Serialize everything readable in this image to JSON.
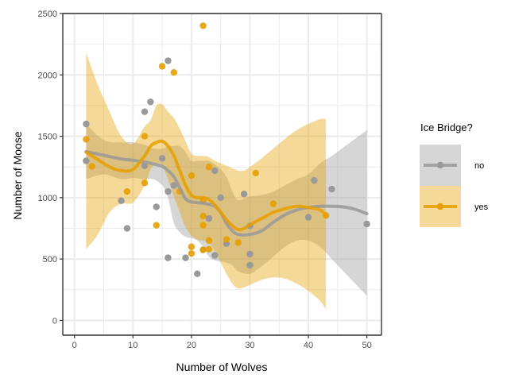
{
  "chart_data": {
    "type": "scatter",
    "xlabel": "Number of Wolves",
    "ylabel": "Number of Moose",
    "xlim": [
      -2,
      52.5
    ],
    "ylim": [
      -120,
      2500
    ],
    "x_ticks": [
      0,
      10,
      20,
      30,
      40,
      50
    ],
    "y_ticks": [
      0,
      500,
      1000,
      1500,
      2000,
      2500
    ],
    "grid": true,
    "legend": {
      "title": "Ice Bridge?",
      "position": "right",
      "entries": [
        "no",
        "yes"
      ]
    },
    "colors": {
      "no": "#999999",
      "yes": "#E69F00",
      "axis": "#333333",
      "grid": "#ebebeb"
    },
    "series": [
      {
        "name": "no",
        "points": [
          [
            2,
            1600
          ],
          [
            2,
            1300
          ],
          [
            8,
            975
          ],
          [
            9,
            750
          ],
          [
            12,
            1700
          ],
          [
            12,
            1260
          ],
          [
            13,
            1780
          ],
          [
            14,
            925
          ],
          [
            15,
            1320
          ],
          [
            16,
            2115
          ],
          [
            16,
            510
          ],
          [
            16,
            1050
          ],
          [
            17,
            1100
          ],
          [
            19,
            510
          ],
          [
            21,
            380
          ],
          [
            22,
            575
          ],
          [
            23,
            830
          ],
          [
            24,
            1220
          ],
          [
            24,
            530
          ],
          [
            25,
            1000
          ],
          [
            26,
            625
          ],
          [
            29,
            1030
          ],
          [
            30,
            770
          ],
          [
            30,
            540
          ],
          [
            30,
            450
          ],
          [
            40,
            840
          ],
          [
            41,
            1140
          ],
          [
            44,
            1070
          ],
          [
            50,
            785
          ]
        ],
        "smooth_x": [
          2,
          5,
          8,
          10,
          12,
          13.5,
          15,
          16,
          17,
          18,
          19,
          20,
          21,
          22,
          23,
          24,
          25,
          26,
          27,
          28,
          30,
          32,
          34,
          36,
          38,
          40,
          42,
          44,
          46,
          48,
          50
        ],
        "smooth_y": [
          1375,
          1345,
          1315,
          1305,
          1290,
          1275,
          1255,
          1220,
          1170,
          1080,
          990,
          965,
          960,
          955,
          945,
          930,
          880,
          790,
          730,
          700,
          700,
          730,
          800,
          860,
          900,
          920,
          930,
          930,
          925,
          905,
          870
        ],
        "ci_low": [
          1150,
          1190,
          1150,
          1160,
          1150,
          1150,
          1100,
          1000,
          790,
          720,
          680,
          670,
          650,
          600,
          520,
          490,
          480,
          470,
          450,
          400,
          380,
          440,
          520,
          600,
          650,
          650,
          600,
          500,
          400,
          300,
          200
        ],
        "ci_high": [
          1600,
          1470,
          1450,
          1450,
          1430,
          1400,
          1400,
          1420,
          1420,
          1420,
          1370,
          1300,
          1300,
          1300,
          1300,
          1270,
          1230,
          1170,
          1050,
          980,
          1010,
          1020,
          1050,
          1100,
          1150,
          1190,
          1280,
          1340,
          1410,
          1480,
          1550
        ]
      },
      {
        "name": "yes",
        "points": [
          [
            2,
            1475
          ],
          [
            3,
            1255
          ],
          [
            9,
            1050
          ],
          [
            12,
            1500
          ],
          [
            12,
            1120
          ],
          [
            14,
            775
          ],
          [
            15,
            2070
          ],
          [
            17,
            2020
          ],
          [
            18,
            1050
          ],
          [
            20,
            1180
          ],
          [
            20,
            600
          ],
          [
            20,
            545
          ],
          [
            22,
            2400
          ],
          [
            22,
            975
          ],
          [
            22,
            850
          ],
          [
            22,
            575
          ],
          [
            22,
            775
          ],
          [
            23,
            1250
          ],
          [
            23,
            650
          ],
          [
            23,
            580
          ],
          [
            26,
            660
          ],
          [
            28,
            635
          ],
          [
            31,
            1200
          ],
          [
            34,
            950
          ],
          [
            43,
            855
          ]
        ],
        "smooth_x": [
          2,
          4,
          6,
          8,
          10,
          12,
          13,
          14,
          15,
          16,
          17,
          18,
          19,
          20,
          21,
          22,
          23,
          24,
          25,
          26,
          27,
          28,
          29,
          30,
          32,
          34,
          36,
          38,
          40,
          42,
          43
        ],
        "smooth_y": [
          1370,
          1310,
          1250,
          1220,
          1230,
          1340,
          1420,
          1450,
          1460,
          1420,
          1340,
          1220,
          1100,
          1020,
          1000,
          1000,
          985,
          940,
          880,
          820,
          770,
          740,
          750,
          780,
          830,
          880,
          910,
          930,
          920,
          900,
          860
        ],
        "ci_low": [
          580,
          700,
          880,
          950,
          960,
          1100,
          1230,
          1280,
          1260,
          1150,
          1010,
          880,
          760,
          690,
          660,
          650,
          640,
          560,
          470,
          380,
          300,
          260,
          270,
          290,
          330,
          350,
          340,
          300,
          240,
          160,
          90
        ],
        "ci_high": [
          2180,
          1920,
          1700,
          1500,
          1440,
          1580,
          1630,
          1750,
          1760,
          1700,
          1650,
          1560,
          1460,
          1360,
          1340,
          1340,
          1330,
          1300,
          1280,
          1260,
          1240,
          1220,
          1220,
          1250,
          1320,
          1400,
          1480,
          1550,
          1600,
          1640,
          1640
        ]
      }
    ]
  }
}
